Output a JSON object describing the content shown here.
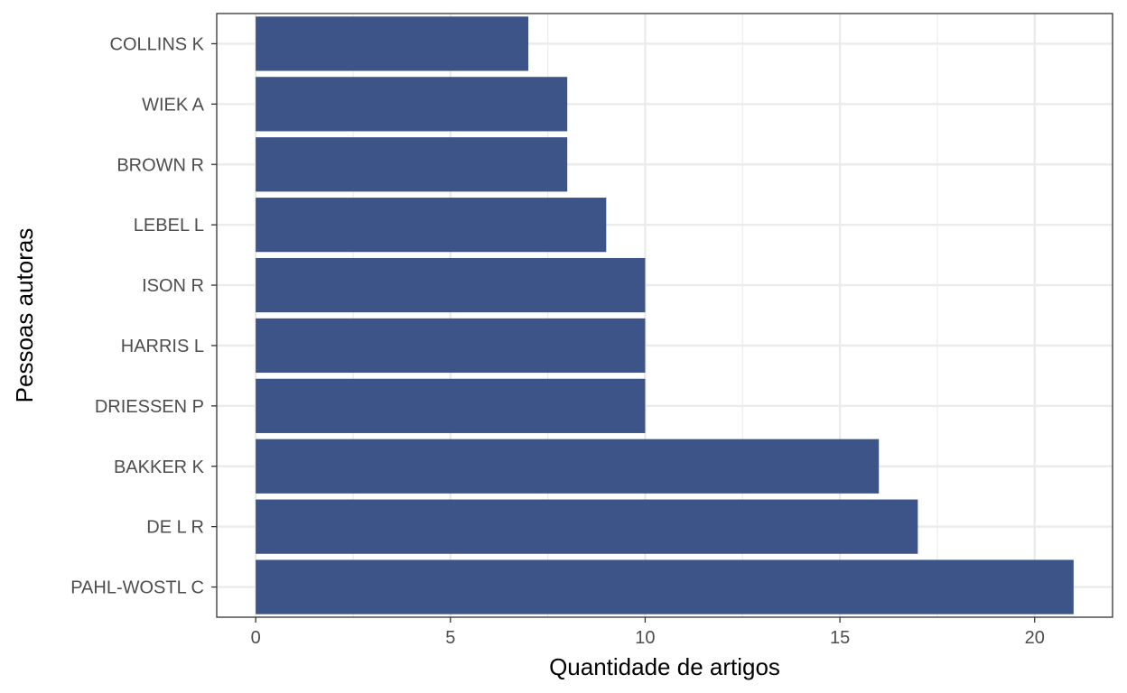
{
  "chart_data": {
    "type": "bar",
    "orientation": "horizontal",
    "title": "",
    "xlabel": "Quantidade de artigos",
    "ylabel": "Pessoas autoras",
    "categories": [
      "COLLINS K",
      "WIEK A",
      "BROWN R",
      "LEBEL L",
      "ISON R",
      "HARRIS L",
      "DRIESSEN P",
      "BAKKER K",
      "DE L R",
      "PAHL-WOSTL C"
    ],
    "values": [
      7,
      8,
      8,
      9,
      10,
      10,
      10,
      16,
      17,
      21
    ],
    "xlim": [
      -1,
      22
    ],
    "xticks": [
      0,
      5,
      10,
      15,
      20
    ],
    "grid": true,
    "legend": "none",
    "colors": {
      "bar": "#3c5488",
      "grid": "#ebebeb",
      "panel_border": "#333333",
      "background": "#ffffff"
    }
  }
}
